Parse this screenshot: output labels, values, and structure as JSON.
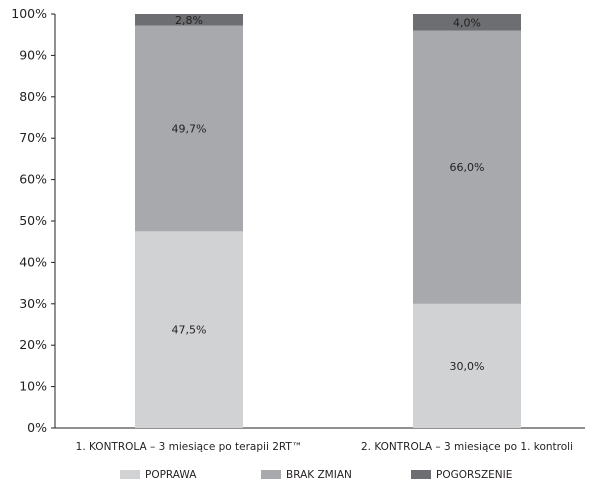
{
  "chart_data": {
    "type": "bar",
    "stacked": true,
    "title": "",
    "xlabel": "",
    "ylabel": "",
    "ylim": [
      0,
      100
    ],
    "yticks": [
      "0%",
      "10%",
      "20%",
      "30%",
      "40%",
      "50%",
      "60%",
      "70%",
      "80%",
      "90%",
      "100%"
    ],
    "categories": [
      "1. KONTROLA – 3 miesiące po terapii 2RT™",
      "2. KONTROLA – 3 miesiące po 1. kontroli"
    ],
    "series": [
      {
        "name": "POPRAWA",
        "values": [
          47.5,
          30.0
        ],
        "labels": [
          "47,5%",
          "30,0%"
        ],
        "color": "#d1d2d4"
      },
      {
        "name": "BRAK ZMIAN",
        "values": [
          49.7,
          66.0
        ],
        "labels": [
          "49,7%",
          "66,0%"
        ],
        "color": "#a7a9ac"
      },
      {
        "name": "POGORSZENIE",
        "values": [
          2.8,
          4.0
        ],
        "labels": [
          "2,8%",
          "4,0%"
        ],
        "color": "#6d6e71"
      }
    ],
    "grid": false,
    "legend": "bottom"
  }
}
